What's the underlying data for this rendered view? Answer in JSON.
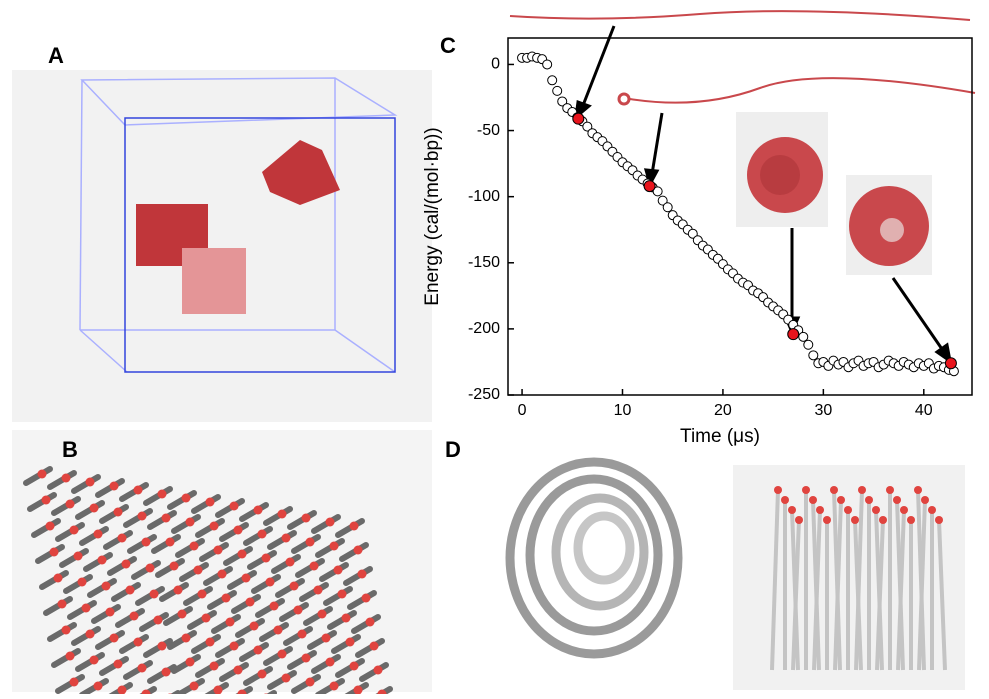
{
  "panel_labels": [
    "A",
    "B",
    "C",
    "D"
  ],
  "chart_data": {
    "type": "scatter",
    "x_label": "Time (μs)",
    "y_label": "Energy (cal/(mol·bp))",
    "xlim": [
      -1.4,
      44.8
    ],
    "ylim": [
      -250,
      20
    ],
    "xticks": [
      0,
      10,
      20,
      30,
      40
    ],
    "yticks": [
      0,
      -50,
      -100,
      -150,
      -200,
      -250
    ],
    "series": [
      {
        "color": "#ffffff",
        "x": [
          0,
          0.5,
          1,
          1.5,
          2,
          2.5,
          3,
          3.5,
          4,
          4.5,
          5,
          5.5,
          6,
          6.5,
          7,
          7.5,
          8,
          8.5,
          9,
          9.5,
          10,
          10.5,
          11,
          11.5,
          12,
          12.5,
          13,
          13.5,
          14,
          14.5,
          15,
          15.5,
          16,
          16.5,
          17,
          17.5,
          18,
          18.5,
          19,
          19.5,
          20,
          20.5,
          21,
          21.5,
          22,
          22.5,
          23,
          23.5,
          24,
          24.5,
          25,
          25.5,
          26,
          26.5,
          27,
          27.5,
          28,
          28.5,
          29,
          29.5,
          30,
          30.5,
          31,
          31.5,
          32,
          32.5,
          33,
          33.5,
          34,
          34.5,
          35,
          35.5,
          36,
          36.5,
          37,
          37.5,
          38,
          38.5,
          39,
          39.5,
          40,
          40.5,
          41,
          41.5,
          42,
          42.5,
          43
        ],
        "values": [
          5,
          5,
          6,
          5,
          4,
          0,
          -12,
          -20,
          -28,
          -33,
          -36,
          -40,
          -43,
          -47,
          -52,
          -55,
          -58,
          -62,
          -66,
          -70,
          -74,
          -77,
          -80,
          -84,
          -87,
          -90,
          -93,
          -96,
          -103,
          -108,
          -114,
          -118,
          -121,
          -125,
          -128,
          -133,
          -137,
          -140,
          -144,
          -147,
          -151,
          -155,
          -158,
          -162,
          -165,
          -167,
          -171,
          -173,
          -176,
          -180,
          -183,
          -186,
          -189,
          -193,
          -197,
          -201,
          -206,
          -212,
          -220,
          -226,
          -225,
          -228,
          -224,
          -227,
          -225,
          -229,
          -226,
          -224,
          -228,
          -226,
          -225,
          -229,
          -227,
          -224,
          -226,
          -228,
          -225,
          -227,
          -229,
          -226,
          -228,
          -226,
          -230,
          -228,
          -229,
          -231,
          -232
        ]
      },
      {
        "color": "#e8141c",
        "x": [
          5.6,
          12.7,
          27,
          42.7
        ],
        "values": [
          -41,
          -92,
          -204,
          -226
        ]
      }
    ]
  }
}
